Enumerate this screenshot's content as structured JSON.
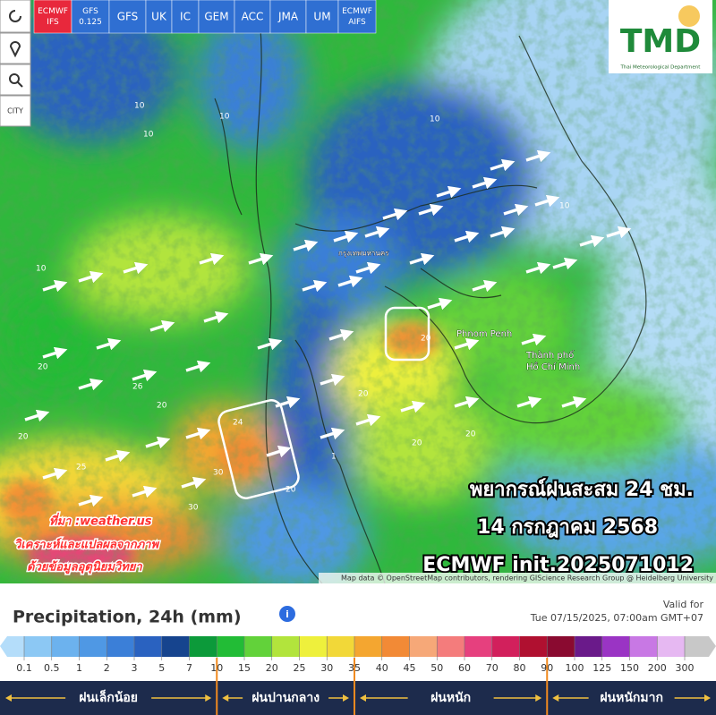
{
  "toolbar": {
    "models": [
      "ECMWF IFS",
      "GFS 0.125",
      "GFS",
      "UK",
      "IC",
      "GEM",
      "ACC",
      "JMA",
      "UM",
      "ECMWF AIFS"
    ],
    "active": 0,
    "city": "CITY"
  },
  "logo": {
    "text": "TMD",
    "subtitle": "Thai Meteorological Department"
  },
  "map": {
    "places": [
      "Phnom Penh",
      "Thành phố",
      "Hồ Chí Minh",
      "กรุงเทพมหานคร"
    ],
    "contour_labels": [
      "10",
      "10",
      "10",
      "20",
      "20",
      "26",
      "24",
      "25",
      "30",
      "30",
      "20",
      "20",
      "20",
      "20",
      "10",
      "10",
      "20",
      "20",
      "10",
      "1"
    ],
    "attribution": "Map data © OpenStreetMap contributors, rendering GIScience Research Group @ Heidelberg University"
  },
  "overlay": {
    "title": "พยากรณ์ฝนสะสม 24 ชม.",
    "date": "14 กรกฎาคม 2568",
    "model": "ECMWF init.2025071012"
  },
  "source": [
    "ที่มา :weather.us",
    "วิเคราะห์และแปลผลจากภาพ",
    "ด้วยข้อมูลอุตุนิยมวิทยา"
  ],
  "legend": {
    "title": "Precipitation, 24h (mm)",
    "valid_label": "Valid for",
    "valid_time": "Tue 07/15/2025, 07:00am GMT+07",
    "values": [
      0.1,
      0.5,
      1,
      2,
      3,
      5,
      7,
      10,
      15,
      20,
      25,
      30,
      35,
      40,
      45,
      50,
      60,
      70,
      80,
      90,
      100,
      125,
      150,
      200,
      300
    ],
    "colors": [
      "#b4ddfa",
      "#8cc8f4",
      "#6cb2ee",
      "#4f98e4",
      "#3b7fd8",
      "#2a62c0",
      "#16448e",
      "#0c9a3a",
      "#22bc36",
      "#62d23a",
      "#b2e43c",
      "#eef03c",
      "#f2d838",
      "#f4a630",
      "#f28a36",
      "#f6a878",
      "#f47c7c",
      "#e6407e",
      "#d2205c",
      "#b01030",
      "#8a0a30",
      "#6a1a8a",
      "#9a34c4",
      "#c878e4",
      "#e6b8f2",
      "#c8c8c8"
    ],
    "categories": [
      "ฝนเล็กน้อย",
      "ฝนปานกลาง",
      "ฝนหนัก",
      "ฝนหนักมาก"
    ]
  }
}
